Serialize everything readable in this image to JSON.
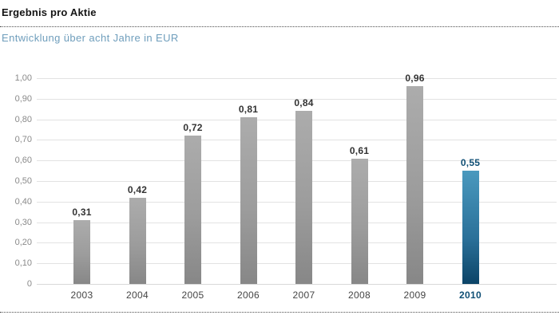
{
  "header": {
    "title": "Ergebnis pro Aktie",
    "subtitle": "Entwicklung über acht Jahre in EUR"
  },
  "colors": {
    "subtitle_blue": "#6f9ebc",
    "highlight_text_blue": "#0f4f75",
    "bar_gray_top": "#acacac",
    "bar_gray_bottom": "#878787",
    "bar_blue_top": "#4a99be",
    "bar_blue_bottom": "#0c4467",
    "gridline": "#e2e2e2"
  },
  "chart_data": {
    "type": "bar",
    "title": "Ergebnis pro Aktie",
    "subtitle": "Entwicklung über acht Jahre in EUR",
    "unit": "EUR",
    "categories": [
      "2003",
      "2004",
      "2005",
      "2006",
      "2007",
      "2008",
      "2009",
      "2010"
    ],
    "values": [
      0.31,
      0.42,
      0.72,
      0.81,
      0.84,
      0.61,
      0.96,
      0.55
    ],
    "value_labels": [
      "0,31",
      "0,42",
      "0,72",
      "0,81",
      "0,84",
      "0,61",
      "0,96",
      "0,55"
    ],
    "highlight_index": 7,
    "y_ticks": [
      "1,00",
      "0,90",
      "0,80",
      "0,70",
      "0,60",
      "0,50",
      "0,40",
      "0,30",
      "0,20",
      "0,10",
      "0"
    ],
    "y_tick_values": [
      1.0,
      0.9,
      0.8,
      0.7,
      0.6,
      0.5,
      0.4,
      0.3,
      0.2,
      0.1,
      0
    ],
    "ylim": [
      0,
      1.0
    ],
    "grid": true,
    "legend": "none"
  }
}
